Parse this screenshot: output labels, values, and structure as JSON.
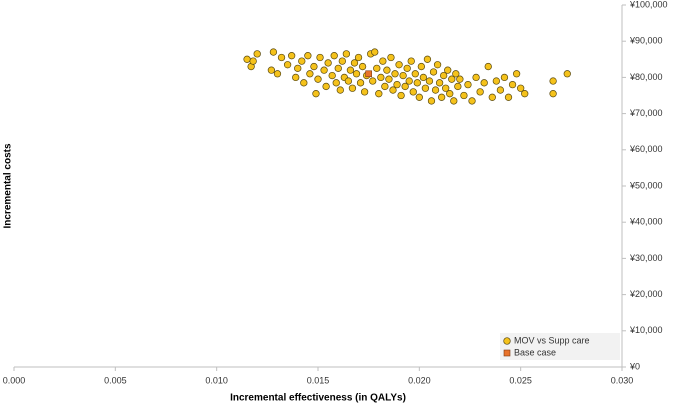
{
  "chart_data": {
    "type": "scatter",
    "xlabel": "Incremental effectiveness (in QALYs)",
    "ylabel": "Incremental costs",
    "xlim": [
      0,
      0.03
    ],
    "xticks": [
      {
        "value": 0,
        "label": "0.000"
      },
      {
        "value": 0.005,
        "label": "0.005"
      },
      {
        "value": 0.01,
        "label": "0.010"
      },
      {
        "value": 0.015,
        "label": "0.015"
      },
      {
        "value": 0.02,
        "label": "0.020"
      },
      {
        "value": 0.025,
        "label": "0.025"
      },
      {
        "value": 0.03,
        "label": "0.030"
      }
    ],
    "ylim": [
      0,
      100000
    ],
    "yticks": [
      {
        "value": 0,
        "label": "¥0"
      },
      {
        "value": 10000,
        "label": "¥10,000"
      },
      {
        "value": 20000,
        "label": "¥20,000"
      },
      {
        "value": 30000,
        "label": "¥30,000"
      },
      {
        "value": 40000,
        "label": "¥40,000"
      },
      {
        "value": 50000,
        "label": "¥50,000"
      },
      {
        "value": 60000,
        "label": "¥60,000"
      },
      {
        "value": 70000,
        "label": "¥70,000"
      },
      {
        "value": 80000,
        "label": "¥80,000"
      },
      {
        "value": 90000,
        "label": "¥90,000"
      },
      {
        "value": 100000,
        "label": "¥100,000"
      }
    ],
    "legend": "lower right",
    "series": [
      {
        "name": "MOV vs Supp care",
        "color": "#f5c21b",
        "marker": "circle",
        "x": [
          0.0115,
          0.0117,
          0.012,
          0.0118,
          0.0128,
          0.0127,
          0.013,
          0.0132,
          0.0135,
          0.0137,
          0.0139,
          0.014,
          0.0142,
          0.0143,
          0.0145,
          0.0146,
          0.0148,
          0.0149,
          0.015,
          0.0151,
          0.0153,
          0.0154,
          0.0155,
          0.0157,
          0.0158,
          0.0159,
          0.016,
          0.0161,
          0.0162,
          0.0163,
          0.0164,
          0.0165,
          0.0166,
          0.0167,
          0.0168,
          0.0169,
          0.017,
          0.0171,
          0.0172,
          0.0173,
          0.0174,
          0.0176,
          0.0177,
          0.0178,
          0.0179,
          0.018,
          0.0181,
          0.0182,
          0.0183,
          0.0184,
          0.0185,
          0.0186,
          0.0187,
          0.0188,
          0.0189,
          0.019,
          0.0191,
          0.0192,
          0.0193,
          0.0194,
          0.0195,
          0.0196,
          0.0197,
          0.0198,
          0.0199,
          0.02,
          0.0201,
          0.0202,
          0.0203,
          0.0204,
          0.0205,
          0.0206,
          0.0207,
          0.0208,
          0.0209,
          0.021,
          0.0211,
          0.0212,
          0.0213,
          0.0214,
          0.0215,
          0.0216,
          0.0217,
          0.0218,
          0.0219,
          0.022,
          0.0222,
          0.0224,
          0.0226,
          0.0228,
          0.023,
          0.0232,
          0.0234,
          0.0236,
          0.0238,
          0.024,
          0.0242,
          0.0244,
          0.0246,
          0.0248,
          0.025,
          0.0252,
          0.0266,
          0.0266,
          0.0273
        ],
        "y": [
          85000,
          83000,
          86500,
          84500,
          87000,
          82000,
          81000,
          85500,
          83500,
          86000,
          80000,
          82500,
          84500,
          78500,
          86000,
          81000,
          83000,
          75500,
          79500,
          85500,
          82000,
          77500,
          84000,
          80500,
          86000,
          78500,
          82500,
          76500,
          84500,
          80000,
          86500,
          79000,
          82000,
          77000,
          84000,
          81000,
          85500,
          78500,
          83000,
          76000,
          80500,
          86500,
          79000,
          87000,
          82500,
          75500,
          80000,
          84500,
          77500,
          82000,
          79500,
          85500,
          76500,
          81000,
          78000,
          83500,
          75000,
          80500,
          77500,
          82500,
          79000,
          84500,
          76000,
          81000,
          78500,
          74500,
          83000,
          80000,
          77000,
          85000,
          79000,
          73500,
          81500,
          76500,
          83500,
          78500,
          74500,
          80500,
          77000,
          82000,
          75500,
          79500,
          73500,
          81000,
          77500,
          79500,
          75000,
          78000,
          73500,
          80000,
          76000,
          78500,
          83000,
          74500,
          79000,
          76500,
          80000,
          74500,
          78000,
          81000,
          77000,
          75500,
          79000,
          75500,
          81000
        ]
      },
      {
        "name": "Base case",
        "color": "#e8722a",
        "marker": "square",
        "x": [
          0.0175
        ],
        "y": [
          81000
        ]
      }
    ]
  }
}
